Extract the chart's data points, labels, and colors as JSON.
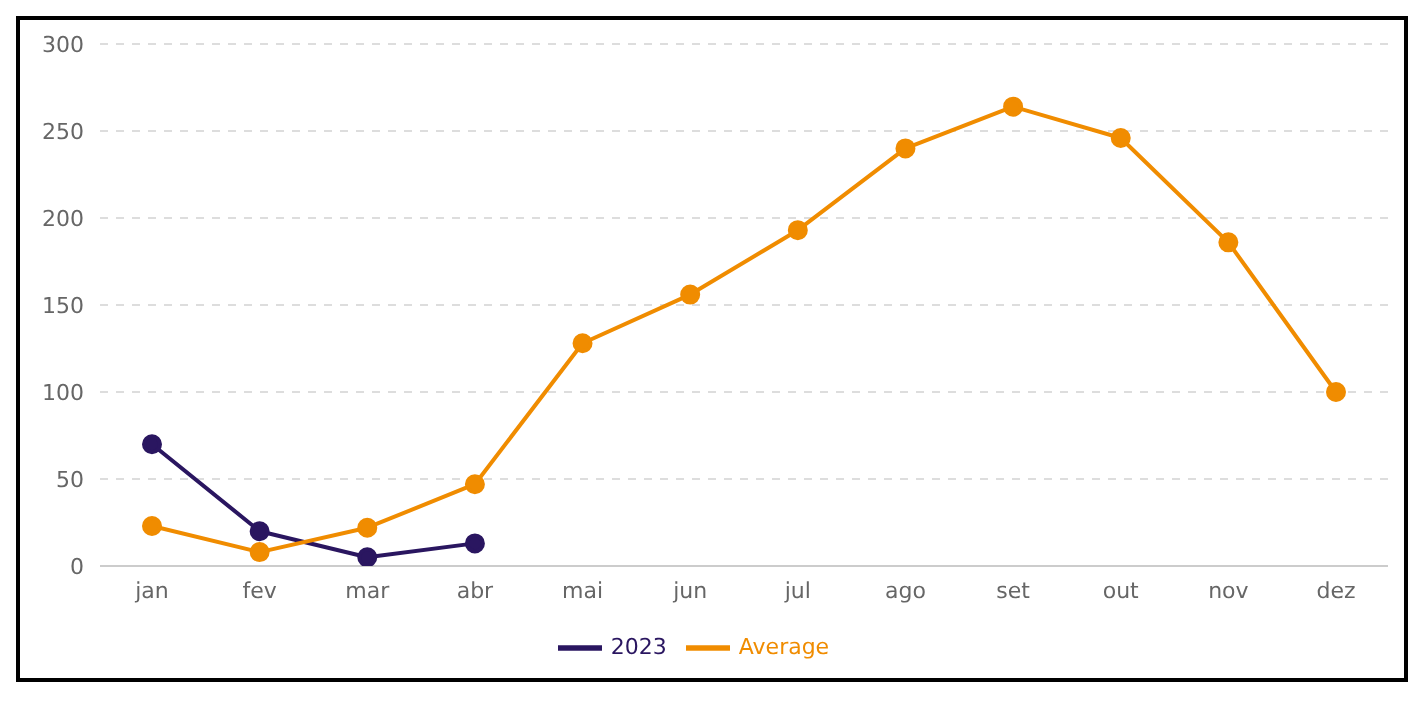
{
  "chart_data": {
    "type": "line",
    "categories": [
      "jan",
      "fev",
      "mar",
      "abr",
      "mai",
      "jun",
      "jul",
      "ago",
      "set",
      "out",
      "nov",
      "dez"
    ],
    "series": [
      {
        "name": "2023",
        "color": "#2a1660",
        "values": [
          70,
          20,
          5,
          13,
          null,
          null,
          null,
          null,
          null,
          null,
          null,
          null
        ]
      },
      {
        "name": "Average",
        "color": "#f08c00",
        "values": [
          23,
          8,
          22,
          47,
          128,
          156,
          193,
          240,
          264,
          246,
          186,
          100
        ]
      }
    ],
    "ylim": [
      0,
      300
    ],
    "yticks": [
      0,
      50,
      100,
      150,
      200,
      250,
      300
    ],
    "grid": "y",
    "legend": "bottom",
    "marker": "circle",
    "line_style": "solid"
  }
}
